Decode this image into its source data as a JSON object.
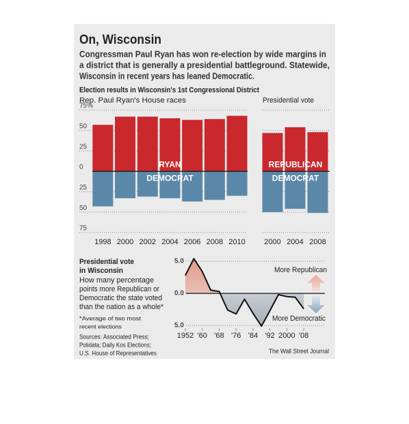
{
  "title": "On, Wisconsin",
  "subtitle": [
    "Congressman Paul Ryan has won re-election by wide margins in",
    "a district that is generally a presidential battleground. Statewide,",
    "Wisconsin in recent years has leaned Democratic."
  ],
  "section_title": "Election results in Wisconsin's 1st Congressional District",
  "source": [
    "Sources: Associated Press;",
    "Polidata; Daily Kos Elections;",
    "U.S. House of Representatives"
  ],
  "credit": "The Wall Street Journal",
  "chart_data": [
    {
      "type": "bar",
      "title": "Rep. Paul Ryan's House races",
      "categories": [
        "1998",
        "2000",
        "2002",
        "2004",
        "2006",
        "2008",
        "2010"
      ],
      "series": [
        {
          "name": "RYAN",
          "color": "#c9282d",
          "values": [
            57,
            67,
            67,
            65,
            63,
            64,
            68
          ]
        },
        {
          "name": "DEMOCRAT",
          "color": "#5b88a8",
          "values": [
            -43,
            -33,
            -31,
            -33,
            -37,
            -35,
            -30
          ]
        }
      ],
      "ylim": [
        -75,
        75
      ],
      "yticks": [
        {
          "value": 75,
          "label": "75%"
        },
        50,
        25,
        0,
        {
          "value": -25,
          "label": "25"
        },
        {
          "value": -50,
          "label": "50"
        },
        {
          "value": -75,
          "label": "75"
        }
      ],
      "grid": true
    },
    {
      "type": "bar",
      "title": "Presidential vote",
      "categories": [
        "2000",
        "2004",
        "2008"
      ],
      "series": [
        {
          "name": "REPUBLICAN",
          "color": "#c9282d",
          "values": [
            47,
            54,
            48
          ]
        },
        {
          "name": "DEMOCRAT",
          "color": "#5b88a8",
          "values": [
            -50,
            -46,
            -51
          ]
        }
      ],
      "ylim": [
        -75,
        75
      ]
    },
    {
      "type": "line",
      "title": [
        "Presidential vote",
        "in Wisconsin"
      ],
      "description": [
        "How many percentage",
        "points more Republican or",
        "Democratic the state voted",
        "than the nation as a whole*"
      ],
      "note": [
        "*Average of two most",
        "recent elections"
      ],
      "annotations": [
        "More Republican",
        "More Democratic"
      ],
      "x": [
        1952,
        1956,
        1960,
        1964,
        1968,
        1972,
        1976,
        1980,
        1984,
        1988,
        1992,
        1996,
        2000,
        2004,
        2008
      ],
      "values": [
        2.8,
        5.4,
        3.4,
        0.5,
        0.3,
        -2.6,
        -3.2,
        -0.9,
        -3.1,
        -5.1,
        -2.7,
        -0.2,
        -0.5,
        -0.6,
        -2.4
      ],
      "color": "#111111",
      "xlim": [
        1952,
        2018
      ],
      "xticks": [
        1952,
        {
          "value": 1960,
          "label": "'60"
        },
        {
          "value": 1968,
          "label": "'68"
        },
        {
          "value": 1976,
          "label": "'76"
        },
        {
          "value": 1984,
          "label": "'84"
        },
        {
          "value": 1992,
          "label": "'92"
        },
        2000,
        {
          "value": 2008,
          "label": "'08"
        }
      ],
      "ylim": [
        -5,
        5
      ],
      "yticks": [
        {
          "value": 5,
          "label": "5.0"
        },
        {
          "value": 0,
          "label": "0.0"
        },
        {
          "value": -5,
          "label": "5.0"
        }
      ],
      "grid": true
    }
  ]
}
